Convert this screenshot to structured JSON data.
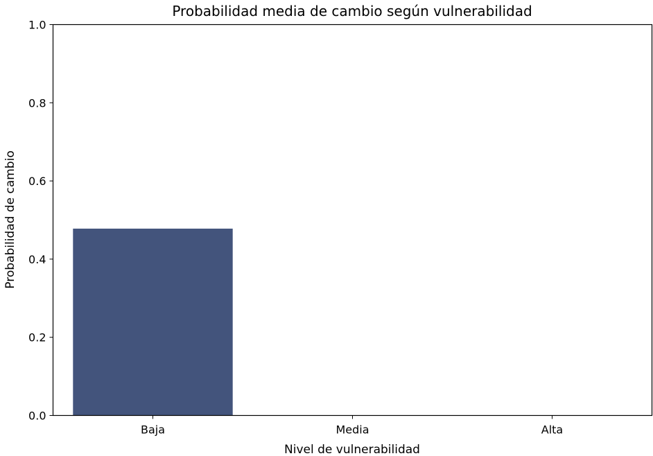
{
  "chart_data": {
    "type": "bar",
    "title": "Probabilidad media de cambio según vulnerabilidad",
    "xlabel": "Nivel de vulnerabilidad",
    "ylabel": "Probabilidad de cambio",
    "categories": [
      "Baja",
      "Media",
      "Alta"
    ],
    "values": [
      0.478,
      0,
      0
    ],
    "ylim": [
      0,
      1.0
    ],
    "yticks": [
      0.0,
      0.2,
      0.4,
      0.6,
      0.8,
      1.0
    ],
    "ytick_labels": [
      "0.0",
      "0.2",
      "0.4",
      "0.6",
      "0.8",
      "1.0"
    ],
    "bar_color": "#43547c",
    "grid": false,
    "legend": "none"
  }
}
